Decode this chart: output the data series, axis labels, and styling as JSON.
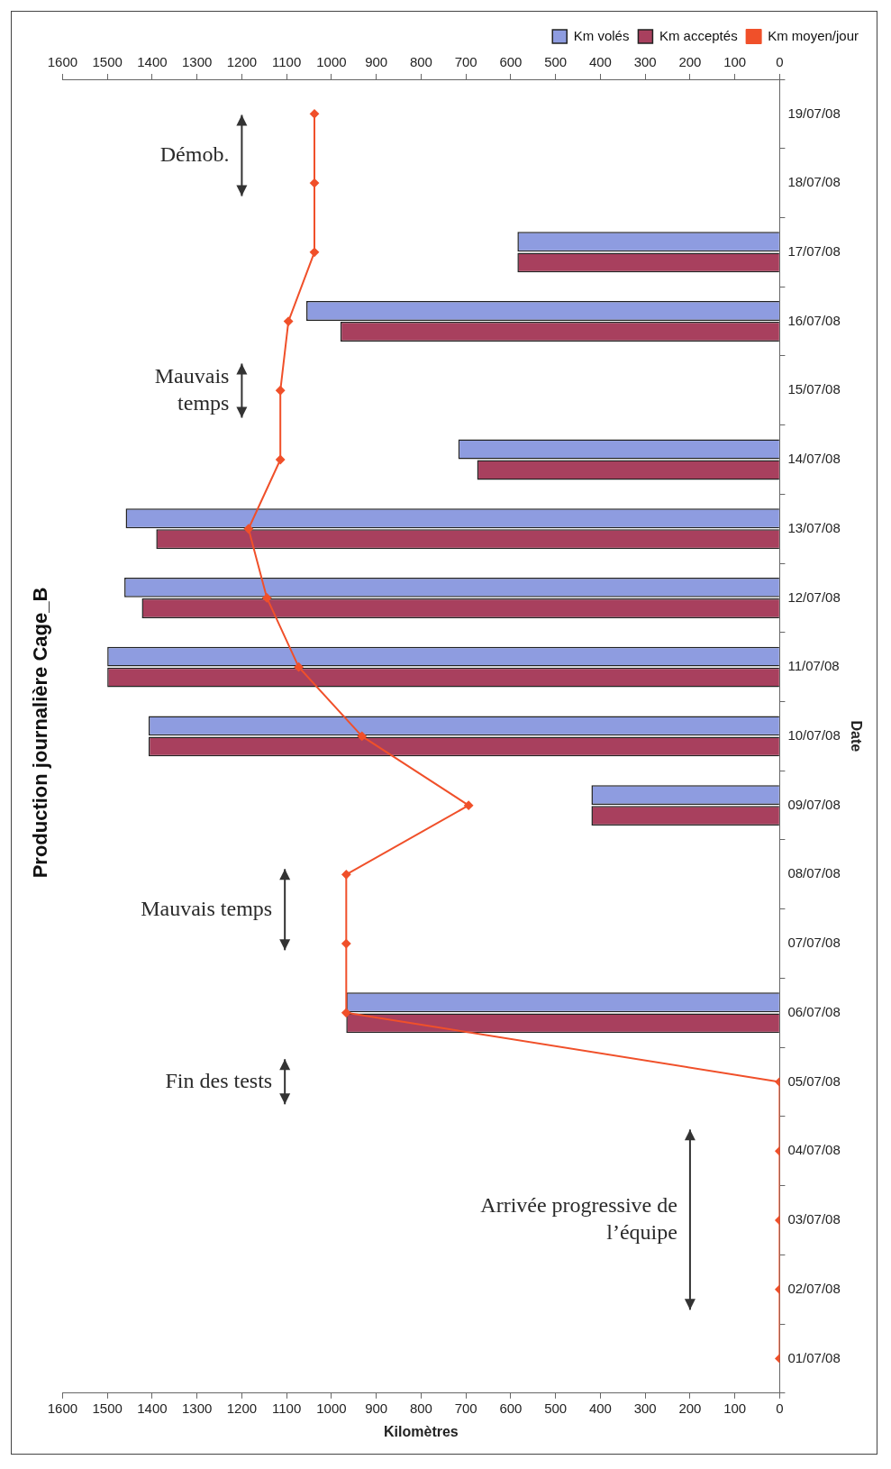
{
  "chart_data": {
    "type": "bar",
    "orientation": "horizontal",
    "title": "Production journalière Cage_B",
    "xlabel": "Kilomètres",
    "ylabel": "Date",
    "categories": [
      "19/07/08",
      "18/07/08",
      "17/07/08",
      "16/07/08",
      "15/07/08",
      "14/07/08",
      "13/07/08",
      "12/07/08",
      "11/07/08",
      "10/07/08",
      "09/07/08",
      "08/07/08",
      "07/07/08",
      "06/07/08",
      "05/07/08",
      "04/07/08",
      "03/07/08",
      "02/07/08",
      "01/07/08"
    ],
    "series": [
      {
        "name": "Km volés",
        "color": "#8e9ce0",
        "values": [
          null,
          null,
          585,
          1056,
          null,
          717,
          1459,
          1462,
          1500,
          1408,
          420,
          null,
          null,
          967,
          null,
          null,
          null,
          null,
          null
        ]
      },
      {
        "name": "Km acceptés",
        "color": "#a8405e",
        "values": [
          null,
          null,
          585,
          980,
          null,
          675,
          1391,
          1423,
          1500,
          1408,
          420,
          null,
          null,
          967,
          null,
          null,
          null,
          null,
          null
        ]
      },
      {
        "name": "Km moyen/jour",
        "type": "line",
        "color": "#f0502a",
        "marker": "diamond",
        "values": [
          1038,
          1038,
          1038,
          1096,
          1114,
          1114,
          1185,
          1144,
          1073,
          932,
          694,
          967,
          967,
          967,
          0,
          0,
          0,
          0,
          0
        ]
      }
    ],
    "xlim": [
      1600,
      0
    ],
    "xticks": [
      0,
      100,
      200,
      300,
      400,
      500,
      600,
      700,
      800,
      900,
      1000,
      1100,
      1200,
      1300,
      1400,
      1500,
      1600
    ],
    "x2lim": [
      1600,
      0
    ],
    "x2ticks": [
      0,
      100,
      200,
      300,
      400,
      500,
      600,
      700,
      800,
      900,
      1000,
      1100,
      1200,
      1300,
      1400,
      1500,
      1600
    ],
    "legend": "top right",
    "grid": false,
    "annotations": [
      "Démob.",
      "Mauvais temps",
      "Mauvais temps",
      "Fin des tests",
      "Arrivée progressive de l’équipe"
    ]
  }
}
